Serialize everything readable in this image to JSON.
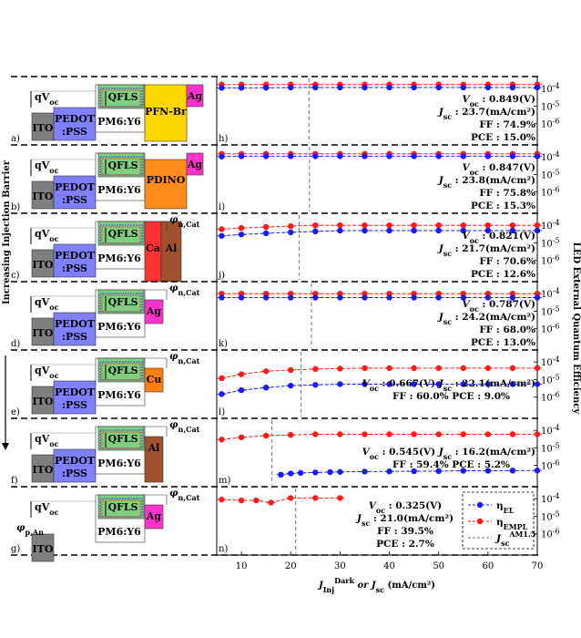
{
  "chart_data": {
    "type": "scatter",
    "title": "",
    "xlabel": "J_Inj^Dark or J_sc (mA/cm^2)",
    "xlabel_parts": {
      "main": "J",
      "sub1": "Inj",
      "sup1": "Dark",
      "mid": " or J",
      "sub2": "sc",
      "unit": " (mA/cm²)"
    },
    "ylabel": "LED External Quantum Efficiency",
    "left_axis_label": "Increasing Injection Barrier",
    "xlim": [
      5,
      70
    ],
    "xticks": [
      10,
      20,
      30,
      40,
      50,
      60,
      70
    ],
    "ylim_log": [
      1e-07,
      0.0003
    ],
    "yticks": [
      "10^-4",
      "10^-5",
      "10^-6"
    ],
    "ytick_parts": [
      {
        "base": "10",
        "exp": "-4"
      },
      {
        "base": "10",
        "exp": "-5"
      },
      {
        "base": "10",
        "exp": "-6"
      }
    ],
    "legend": {
      "el": {
        "main": "η",
        "sub": "EL"
      },
      "empl": {
        "main": "η",
        "sub": "EMPL"
      },
      "jsc": {
        "main": "J",
        "sub": "sc",
        "sup": "AM1.5"
      }
    },
    "colors": {
      "el": "#1a1aff",
      "empl": "#ff1a1a",
      "jsc": "#777777"
    },
    "panels": [
      {
        "letter": "a)",
        "plot_letter": "h)",
        "device": {
          "hole_contact": "ITO",
          "htl": "PEDOT",
          "htl2": ":PSS",
          "active": "PM6:Y6",
          "qfls": "QFLS",
          "voltage": "qV",
          "voltage_sub": "oc",
          "etl": "PFN-Br",
          "metal": "Ag"
        },
        "stats": {
          "voc": "0.849(V)",
          "jsc": "23.7(mA/cm²)",
          "ff": "74.9%",
          "pce": "15.0%"
        },
        "jsc_marker": 23.7,
        "x": [
          6,
          10,
          15,
          20,
          25,
          30,
          35,
          40,
          45,
          50,
          55,
          60,
          65,
          70
        ],
        "el": [
          0.00011,
          0.00011,
          0.000112,
          0.000115,
          0.000115,
          0.000115,
          0.000115,
          0.000115,
          0.000115,
          0.000115,
          0.000115,
          0.000115,
          0.000115,
          0.000115
        ],
        "empl": [
          0.00017,
          0.00017,
          0.00017,
          0.00017,
          0.00017,
          0.00017,
          0.00017,
          0.00017,
          0.00017,
          0.00017,
          0.00017,
          0.00017,
          0.00017,
          0.00017
        ]
      },
      {
        "letter": "b)",
        "plot_letter": "i)",
        "device": {
          "hole_contact": "ITO",
          "htl": "PEDOT",
          "htl2": ":PSS",
          "active": "PM6:Y6",
          "qfls": "QFLS",
          "voltage": "qV",
          "voltage_sub": "oc",
          "etl": "PDINO",
          "metal": "Ag"
        },
        "stats": {
          "voc": "0.847(V)",
          "jsc": "23.8(mA/cm²)",
          "ff": "75.8%",
          "pce": "15.3%"
        },
        "jsc_marker": 23.8,
        "x": [
          6,
          10,
          15,
          20,
          25,
          30,
          35,
          40,
          45,
          50,
          55,
          60,
          65,
          70
        ],
        "el": [
          0.000105,
          0.00011,
          0.00011,
          0.00011,
          0.00011,
          0.00011,
          0.00011,
          0.00011,
          0.00011,
          0.00011,
          0.00011,
          0.00011,
          0.00011,
          0.00011
        ],
        "empl": [
          0.00015,
          0.00015,
          0.00015,
          0.00015,
          0.00015,
          0.00015,
          0.00015,
          0.00015,
          0.00015,
          0.00015,
          0.00015,
          0.00015,
          0.00015,
          0.00015
        ]
      },
      {
        "letter": "c)",
        "plot_letter": "j)",
        "device": {
          "hole_contact": "ITO",
          "htl": "PEDOT",
          "htl2": ":PSS",
          "active": "PM6:Y6",
          "qfls": "QFLS",
          "voltage": "qV",
          "voltage_sub": "oc",
          "etl": "Ca",
          "metal": "Al"
        },
        "barrier": {
          "label": "φ",
          "sub": "n,Cat"
        },
        "stats": {
          "voc": "0.821(V)",
          "jsc": "21.7(mA/cm²)",
          "ff": "70.6%",
          "pce": "12.6%"
        },
        "jsc_marker": 21.7,
        "x": [
          6,
          10,
          15,
          20,
          25,
          30,
          35,
          40,
          45,
          50,
          55,
          60,
          65,
          70
        ],
        "el": [
          2.5e-05,
          3e-05,
          3.5e-05,
          4e-05,
          4.5e-05,
          5e-05,
          5e-05,
          5e-05,
          5e-05,
          5e-05,
          5e-05,
          5e-05,
          5e-05,
          5e-05
        ],
        "empl": [
          6e-05,
          7e-05,
          8e-05,
          9e-05,
          0.0001,
          0.0001,
          0.0001,
          0.0001,
          0.0001,
          0.0001,
          0.0001,
          0.0001,
          0.0001,
          0.0001
        ]
      },
      {
        "letter": "d)",
        "plot_letter": "k)",
        "device": {
          "hole_contact": "ITO",
          "htl": "PEDOT",
          "htl2": ":PSS",
          "active": "PM6:Y6",
          "qfls": "QFLS",
          "voltage": "qV",
          "voltage_sub": "oc",
          "etl": "",
          "metal": "Ag"
        },
        "barrier": {
          "label": "φ",
          "sub": "n,Cat"
        },
        "stats": {
          "voc": "0.787(V)",
          "jsc": "24.2(mA/cm²)",
          "ff": "68.0%",
          "pce": "13.0%"
        },
        "jsc_marker": 24.2,
        "x": [
          6,
          10,
          15,
          20,
          25,
          30,
          35,
          40,
          45,
          50,
          55,
          60,
          65,
          70
        ],
        "el": [
          6e-05,
          6e-05,
          6e-05,
          6e-05,
          6e-05,
          6e-05,
          6e-05,
          6e-05,
          6e-05,
          6e-05,
          6e-05,
          6e-05,
          6e-05,
          6e-05
        ],
        "empl": [
          0.0001,
          0.0001,
          0.0001,
          0.0001,
          0.0001,
          0.0001,
          0.0001,
          0.0001,
          0.0001,
          0.0001,
          0.0001,
          0.0001,
          0.0001,
          0.0001
        ]
      },
      {
        "letter": "e)",
        "plot_letter": "l)",
        "device": {
          "hole_contact": "ITO",
          "htl": "PEDOT",
          "htl2": ":PSS",
          "active": "PM6:Y6",
          "qfls": "QFLS",
          "voltage": "qV",
          "voltage_sub": "oc",
          "etl": "",
          "metal": "Cu"
        },
        "barrier": {
          "label": "φ",
          "sub": "n,Cat"
        },
        "stats_inline": true,
        "stats": {
          "voc": "0.667(V)",
          "jsc": "22.1(mA/cm²)",
          "ff": "60.0%",
          "pce": "9.0%"
        },
        "jsc_marker": 22.1,
        "x": [
          6,
          10,
          15,
          20,
          25,
          30,
          35,
          40,
          45,
          50,
          55,
          60,
          65,
          70
        ],
        "el": [
          1.5e-06,
          2.5e-06,
          3.5e-06,
          4.5e-06,
          5e-06,
          5.5e-06,
          5.5e-06,
          5.5e-06,
          5.5e-06,
          5.5e-06,
          5.5e-06,
          5.5e-06,
          5.5e-06,
          5.5e-06
        ],
        "empl": [
          1.2e-05,
          2e-05,
          3e-05,
          3.5e-05,
          4e-05,
          4.2e-05,
          4.5e-05,
          4.5e-05,
          4.5e-05,
          4.5e-05,
          4.5e-05,
          4.5e-05,
          4.5e-05,
          4.5e-05
        ]
      },
      {
        "letter": "f)",
        "plot_letter": "m)",
        "device": {
          "hole_contact": "ITO",
          "htl": "PEDOT",
          "htl2": ":PSS",
          "active": "PM6:Y6",
          "qfls": "QFLS",
          "voltage": "qV",
          "voltage_sub": "oc",
          "etl": "",
          "metal": "Al"
        },
        "barrier": {
          "label": "φ",
          "sub": "n,Cat"
        },
        "stats_inline": true,
        "stats": {
          "voc": "0.545(V)",
          "jsc": "16.2(mA/cm²)",
          "ff": "59.4%",
          "pce": "5.2%"
        },
        "jsc_marker": 16.2,
        "x": [
          18,
          20,
          22,
          25,
          28,
          30,
          35,
          40,
          45,
          50,
          55,
          60,
          65,
          70
        ],
        "el": [
          3e-07,
          3.5e-07,
          3.8e-07,
          4e-07,
          4.2e-07,
          4.3e-07,
          4.5e-07,
          4.6e-07,
          4.7e-07,
          4.8e-07,
          5e-07,
          5e-07,
          5.1e-07,
          5.2e-07
        ],
        "empl_x": [
          6,
          10,
          15,
          20,
          25,
          30,
          35,
          40,
          45,
          50,
          55,
          60,
          65,
          70
        ],
        "empl": [
          3e-05,
          4e-05,
          5e-05,
          5.5e-05,
          6e-05,
          6e-05,
          6e-05,
          6e-05,
          6e-05,
          6e-05,
          6e-05,
          6e-05,
          6e-05,
          6e-05
        ]
      },
      {
        "letter": "g)",
        "plot_letter": "n)",
        "device": {
          "hole_contact": "ITO",
          "htl": "",
          "htl2": "",
          "active": "PM6:Y6",
          "qfls": "QFLS",
          "voltage": "qV",
          "voltage_sub": "oc",
          "etl": "",
          "metal": "Ag"
        },
        "barrier": {
          "label": "φ",
          "sub": "n,Cat"
        },
        "anode_barrier": {
          "label": "φ",
          "sub": "p,An"
        },
        "stats": {
          "voc": "0.325(V)",
          "jsc": "21.0(mA/cm²)",
          "ff": "39.5%",
          "pce": "2.7%"
        },
        "jsc_marker": 21.0,
        "x": [],
        "el": [],
        "empl_x": [
          6,
          10,
          13,
          16,
          20,
          25,
          30
        ],
        "empl": [
          9e-05,
          8e-05,
          8e-05,
          6e-05,
          0.00011,
          0.00011,
          0.00011
        ]
      }
    ]
  }
}
